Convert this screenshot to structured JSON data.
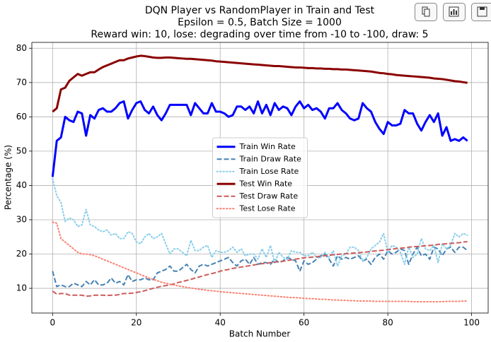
{
  "chart_data": {
    "type": "line",
    "title": "DQN Player vs RandomPlayer in Train and Test",
    "subtitle": [
      "Epsilon = 0.5, Batch Size = 1000",
      "Reward win: 10, lose: degrading over time from -10 to -100, draw: 5"
    ],
    "x_label": "Batch Number",
    "y_label": "Percentage (%)",
    "xlim": [
      -4.95,
      103.95
    ],
    "ylim": [
      2.8,
      81.7
    ],
    "xticks": [
      0,
      20,
      40,
      60,
      80,
      100
    ],
    "yticks": [
      10,
      20,
      30,
      40,
      50,
      60,
      70,
      80
    ],
    "grid": true,
    "legend_loc": "center",
    "x": [
      0,
      1,
      2,
      3,
      4,
      5,
      6,
      7,
      8,
      9,
      10,
      11,
      12,
      13,
      14,
      15,
      16,
      17,
      18,
      19,
      20,
      21,
      22,
      23,
      24,
      25,
      26,
      27,
      28,
      29,
      30,
      31,
      32,
      33,
      34,
      35,
      36,
      37,
      38,
      39,
      40,
      41,
      42,
      43,
      44,
      45,
      46,
      47,
      48,
      49,
      50,
      51,
      52,
      53,
      54,
      55,
      56,
      57,
      58,
      59,
      60,
      61,
      62,
      63,
      64,
      65,
      66,
      67,
      68,
      69,
      70,
      71,
      72,
      73,
      74,
      75,
      76,
      77,
      78,
      79,
      80,
      81,
      82,
      83,
      84,
      85,
      86,
      87,
      88,
      89,
      90,
      91,
      92,
      93,
      94,
      95,
      96,
      97,
      98,
      99
    ],
    "series": [
      {
        "name": "Train Win Rate",
        "color": "#0000ff",
        "linestyle": "solid",
        "linewidth": 3,
        "values": [
          42.5,
          53,
          54,
          60,
          59,
          58.5,
          61.5,
          61,
          54.5,
          60.5,
          59.5,
          62,
          62.5,
          61.5,
          61.5,
          62.5,
          64,
          64.5,
          59.5,
          62,
          64,
          64.5,
          62,
          61,
          63,
          60.5,
          59,
          61,
          63.5,
          63.5,
          63.5,
          63.5,
          63.5,
          60.5,
          64,
          62.5,
          61,
          61,
          64,
          61.5,
          61.5,
          61,
          60,
          60.5,
          63,
          63,
          62,
          63,
          61,
          64.5,
          61,
          63.5,
          60.5,
          64,
          62,
          63,
          62.5,
          60.5,
          63,
          64.5,
          62.5,
          63.5,
          62,
          62.5,
          61.5,
          59.5,
          62.5,
          62.5,
          64,
          62,
          61,
          59.5,
          59,
          59.5,
          64,
          62.5,
          61.5,
          58.5,
          56.5,
          55,
          58.5,
          57.5,
          57.5,
          58,
          62,
          61,
          61,
          58,
          56,
          58.5,
          60.5,
          58.5,
          61,
          54.5,
          57,
          53,
          53.5,
          53,
          54,
          53
        ]
      },
      {
        "name": "Train Draw Rate",
        "color": "#4682b4",
        "linestyle": "dashed",
        "linewidth": 2,
        "values": [
          15,
          10.5,
          11,
          10.5,
          10.5,
          11.5,
          11,
          10.5,
          12,
          11,
          12.5,
          11,
          11,
          11.5,
          13,
          11.5,
          12,
          11,
          14,
          12,
          12.5,
          12.5,
          13,
          12.5,
          12.5,
          14.5,
          15,
          15.5,
          16.5,
          15,
          15,
          16,
          17,
          15.5,
          14.5,
          16.5,
          17,
          16.5,
          17,
          17.5,
          18,
          18.5,
          19,
          17.5,
          16.5,
          18,
          18.5,
          17,
          19,
          17,
          17.5,
          17.5,
          17,
          18.5,
          17.5,
          18,
          19,
          18.5,
          18,
          15,
          18,
          17,
          17.5,
          18.5,
          19.5,
          20,
          18.5,
          16.5,
          19.5,
          18.5,
          19,
          18.5,
          19,
          19.5,
          18,
          18.5,
          17,
          19,
          20,
          18.5,
          21,
          20,
          20.5,
          21.5,
          21,
          17,
          20,
          22,
          19.5,
          20,
          18.5,
          22,
          21.5,
          19.5,
          21.5,
          22,
          20.5,
          22,
          22,
          21
        ]
      },
      {
        "name": "Train Lose Rate",
        "color": "#87ceeb",
        "linestyle": "dotted",
        "linewidth": 2,
        "values": [
          42,
          37,
          35,
          29.5,
          30.5,
          30,
          28,
          28.5,
          33,
          28.5,
          28,
          27,
          26.5,
          27,
          25.5,
          26,
          24.5,
          24.5,
          26.5,
          26,
          23.5,
          23,
          25,
          26,
          24.5,
          25,
          26,
          23,
          20,
          21.5,
          21.5,
          20.5,
          19.5,
          24,
          21,
          21,
          22,
          22.5,
          19,
          21,
          20.5,
          20.5,
          21,
          22,
          20.5,
          21.5,
          19.5,
          20,
          20,
          18.5,
          21.5,
          19,
          22.5,
          17.5,
          20.5,
          19,
          18.5,
          21,
          20.5,
          20.5,
          19.5,
          19.5,
          20.5,
          19,
          19,
          20.5,
          19,
          21,
          16.5,
          19.5,
          20,
          22,
          22,
          21,
          18,
          19,
          21.5,
          22.5,
          23.5,
          26,
          20.5,
          22.5,
          22,
          20.5,
          17,
          22,
          19,
          20,
          24.5,
          21.5,
          21,
          22.5,
          17.5,
          23,
          21.5,
          22.5,
          26,
          25,
          26,
          25.5
        ]
      },
      {
        "name": "Test Win Rate",
        "color": "#8b0000",
        "linestyle": "solid",
        "linewidth": 3,
        "values": [
          61.5,
          62.5,
          68,
          68.5,
          70.5,
          71.5,
          72.5,
          72,
          72.5,
          73,
          73,
          73.8,
          74.5,
          75,
          75.5,
          76,
          76.5,
          76.5,
          77,
          77.3,
          77.6,
          77.8,
          77.7,
          77.5,
          77.3,
          77.2,
          77.2,
          77.3,
          77.3,
          77.2,
          77.1,
          77,
          76.9,
          76.9,
          76.8,
          76.7,
          76.6,
          76.5,
          76.4,
          76.2,
          76.1,
          76,
          75.9,
          75.8,
          75.7,
          75.6,
          75.5,
          75.4,
          75.3,
          75.2,
          75.1,
          75,
          74.9,
          74.8,
          74.8,
          74.7,
          74.6,
          74.5,
          74.4,
          74.4,
          74.3,
          74.2,
          74.2,
          74.1,
          74.1,
          74,
          74,
          73.9,
          73.9,
          73.8,
          73.8,
          73.7,
          73.6,
          73.5,
          73.4,
          73.3,
          73.2,
          73,
          72.8,
          72.7,
          72.5,
          72.4,
          72.2,
          72.1,
          72,
          71.9,
          71.8,
          71.7,
          71.6,
          71.5,
          71.4,
          71.2,
          71.1,
          71,
          70.8,
          70.6,
          70.4,
          70.3,
          70.1,
          69.9
        ]
      },
      {
        "name": "Test Draw Rate",
        "color": "#cd5c5c",
        "linestyle": "dashed",
        "linewidth": 2,
        "values": [
          9.2,
          8.3,
          8.5,
          8.5,
          8,
          8,
          8,
          8,
          7.7,
          7.8,
          8,
          8,
          8,
          7.9,
          8,
          8,
          8.2,
          8.5,
          8.5,
          8.6,
          8.8,
          9,
          9.3,
          9.7,
          10,
          10.3,
          10.6,
          10.8,
          11,
          11.3,
          11.7,
          12,
          12.3,
          12.6,
          13,
          13.3,
          13.7,
          14,
          14.3,
          14.6,
          15,
          15.3,
          15.5,
          15.8,
          16,
          16.2,
          16.4,
          16.6,
          16.8,
          17,
          17.2,
          17.3,
          17.5,
          17.6,
          17.8,
          17.9,
          18.1,
          18.3,
          18.5,
          18.7,
          18.9,
          19,
          19.1,
          19.2,
          19.4,
          19.5,
          19.6,
          19.8,
          19.9,
          20,
          20.1,
          20.2,
          20.3,
          20.4,
          20.5,
          20.6,
          20.8,
          20.9,
          21,
          21.1,
          21.3,
          21.4,
          21.6,
          21.7,
          21.8,
          22,
          22.1,
          22.2,
          22.3,
          22.4,
          22.5,
          22.6,
          22.8,
          22.9,
          23,
          23.1,
          23.2,
          23.3,
          23.5,
          23.6
        ]
      },
      {
        "name": "Test Lose Rate",
        "color": "#fa8072",
        "linestyle": "dotted",
        "linewidth": 2,
        "values": [
          29.3,
          29,
          24.5,
          23.5,
          22.5,
          21.5,
          20.5,
          20,
          20,
          19.8,
          19.5,
          19,
          18.5,
          18,
          17.5,
          17,
          16.5,
          16,
          15.5,
          15,
          14.5,
          14,
          13.5,
          13,
          12.6,
          12.2,
          11.8,
          11.5,
          11.2,
          11,
          10.7,
          10.5,
          10.3,
          10.1,
          9.9,
          9.7,
          9.6,
          9.4,
          9.3,
          9.2,
          9,
          8.9,
          8.8,
          8.7,
          8.6,
          8.5,
          8.4,
          8.3,
          8.2,
          8.1,
          8,
          7.9,
          7.8,
          7.7,
          7.6,
          7.5,
          7.4,
          7.3,
          7.3,
          7.2,
          7.1,
          7,
          7,
          6.9,
          6.8,
          6.8,
          6.7,
          6.6,
          6.6,
          6.5,
          6.5,
          6.4,
          6.4,
          6.3,
          6.3,
          6.3,
          6.3,
          6.2,
          6.2,
          6.2,
          6.2,
          6.2,
          6.2,
          6.2,
          6.2,
          6.2,
          6.1,
          6.1,
          6.1,
          6.1,
          6.1,
          6.1,
          6.1,
          6.1,
          6.2,
          6.2,
          6.2,
          6.2,
          6.3,
          6.3
        ]
      }
    ]
  }
}
